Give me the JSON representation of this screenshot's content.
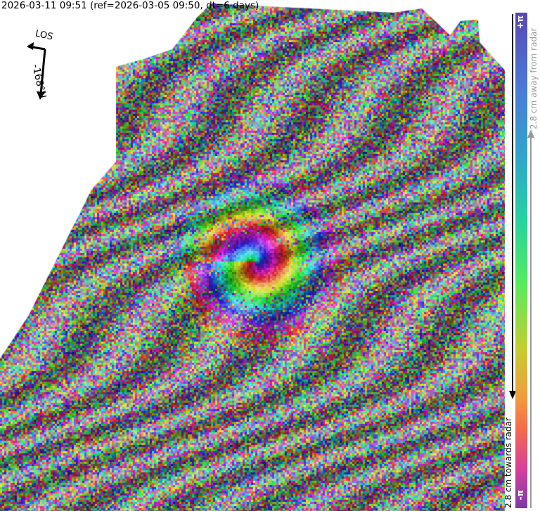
{
  "title": "2026-03-11 09:51 (ref=2026-03-05 09:50, dt=6 days)",
  "compass": {
    "los_label": "LOS",
    "heading_label": "-168°N",
    "icon": "los-heading-arrow-icon"
  },
  "colorbar": {
    "top_label": "+π",
    "bottom_label": "-π",
    "away_label": "2.8 cm away from radar",
    "towards_label": "2.8 cm towards radar",
    "colors": [
      "#5a46b4",
      "#4a7ad6",
      "#2fa8c8",
      "#26d3a0",
      "#58ec5c",
      "#c6cc30",
      "#f29a3e",
      "#f56a4a",
      "#d8409a",
      "#7a3aa8"
    ]
  },
  "map": {
    "type": "wrapped interferogram over shaded relief"
  }
}
